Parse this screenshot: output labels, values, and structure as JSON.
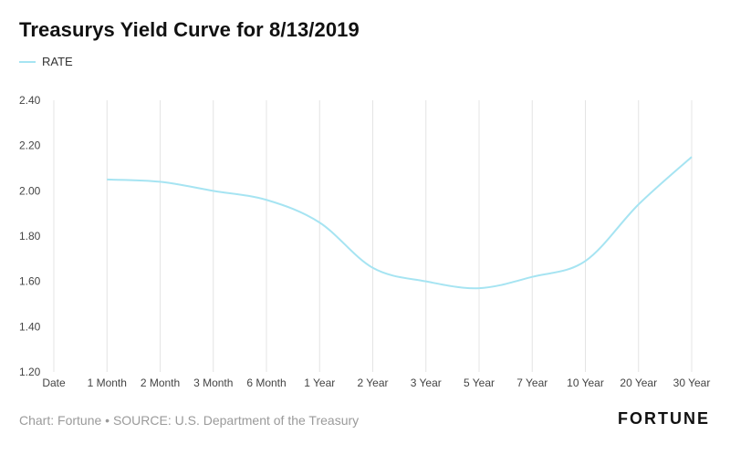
{
  "chart_data": {
    "type": "line",
    "title": "Treasurys Yield Curve for 8/13/2019",
    "categories": [
      "Date",
      "1 Month",
      "2 Month",
      "3 Month",
      "6 Month",
      "1 Year",
      "2 Year",
      "3 Year",
      "5 Year",
      "7 Year",
      "10 Year",
      "20 Year",
      "30 Year"
    ],
    "series": [
      {
        "name": "RATE",
        "values": [
          null,
          2.05,
          2.04,
          2.0,
          1.96,
          1.86,
          1.66,
          1.6,
          1.57,
          1.62,
          1.69,
          1.94,
          2.15
        ],
        "color": "#a6e4f2"
      }
    ],
    "ylim": [
      1.2,
      2.4
    ],
    "yticks": [
      "2.40",
      "2.20",
      "2.00",
      "1.80",
      "1.60",
      "1.40",
      "1.20"
    ],
    "grid": "vertical",
    "legend": "top-left",
    "xlabel": "",
    "ylabel": ""
  },
  "footer": {
    "source": "Chart: Fortune • SOURCE: U.S. Department of the Treasury",
    "brand": "FORTUNE"
  }
}
